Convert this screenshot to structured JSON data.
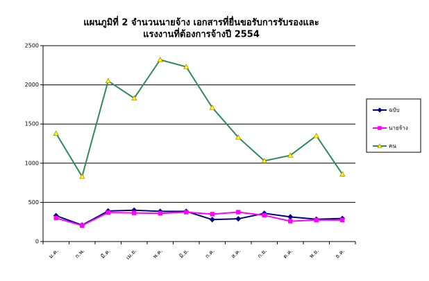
{
  "chart_data": {
    "type": "line",
    "title": [
      "แผนภูมิที่ 2 จำนวนนายจ้าง เอกสารที่ยื่นขอรับการรับรองและ",
      "แรงงานที่ต้องการจ้างปี 2554"
    ],
    "categories": [
      "ม.ค.",
      "ก.พ.",
      "มี.ค.",
      "เม.ย.",
      "พ.ค.",
      "มิ.ย.",
      "ก.ค.",
      "ส.ค.",
      "ก.ย.",
      "ต.ค.",
      "พ.ย.",
      "ธ.ค."
    ],
    "series": [
      {
        "name": "ฉบับ",
        "color": "#000080",
        "marker": "diamond",
        "marker_color": "#000080",
        "values": [
          330,
          210,
          390,
          400,
          385,
          385,
          280,
          290,
          360,
          315,
          285,
          295
        ]
      },
      {
        "name": "นายจ้าง",
        "color": "#ff00ff",
        "marker": "square",
        "marker_color": "#ff00ff",
        "values": [
          300,
          205,
          370,
          365,
          360,
          375,
          350,
          375,
          335,
          260,
          275,
          275
        ]
      },
      {
        "name": "คน",
        "color": "#2e8b57",
        "marker": "triangle",
        "marker_color": "#ffff00",
        "values": [
          1380,
          830,
          2050,
          1830,
          2320,
          2230,
          1710,
          1330,
          1030,
          1100,
          1350,
          860
        ]
      }
    ],
    "ylim": [
      0,
      2500
    ],
    "yticks": [
      0,
      500,
      1000,
      1500,
      2000,
      2500
    ],
    "grid": true,
    "legend": "right"
  }
}
